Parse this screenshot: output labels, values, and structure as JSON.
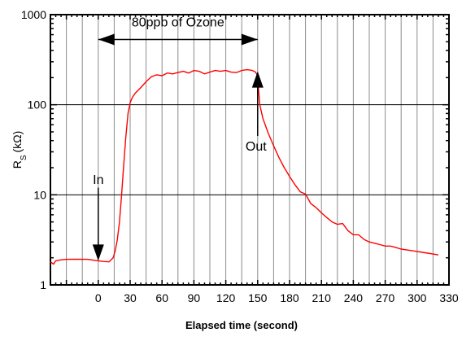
{
  "chart_data": {
    "type": "line",
    "xlabel": "Elapsed time (second)",
    "ylabel": "R",
    "ylabel_sub": "S",
    "ylabel_unit": "(kΩ)",
    "yscale": "log",
    "xlim": [
      -45,
      330
    ],
    "ylim": [
      1,
      1000
    ],
    "x_ticks": [
      0,
      30,
      60,
      90,
      120,
      150,
      180,
      210,
      240,
      270,
      300,
      330
    ],
    "y_ticks": [
      1,
      10,
      100,
      1000
    ],
    "grid": "vertical",
    "series": [
      {
        "color": "#ff0000",
        "points": [
          [
            -45,
            1.8
          ],
          [
            -42,
            1.7
          ],
          [
            -40,
            1.85
          ],
          [
            -35,
            1.9
          ],
          [
            -30,
            1.92
          ],
          [
            -20,
            1.93
          ],
          [
            -10,
            1.92
          ],
          [
            0,
            1.85
          ],
          [
            5,
            1.82
          ],
          [
            10,
            1.8
          ],
          [
            14,
            2.0
          ],
          [
            16,
            2.4
          ],
          [
            18,
            3.2
          ],
          [
            20,
            5
          ],
          [
            22,
            10
          ],
          [
            24,
            22
          ],
          [
            26,
            45
          ],
          [
            28,
            80
          ],
          [
            30,
            105
          ],
          [
            32,
            120
          ],
          [
            35,
            135
          ],
          [
            40,
            155
          ],
          [
            45,
            180
          ],
          [
            50,
            205
          ],
          [
            55,
            215
          ],
          [
            60,
            210
          ],
          [
            65,
            225
          ],
          [
            70,
            220
          ],
          [
            75,
            228
          ],
          [
            80,
            235
          ],
          [
            85,
            225
          ],
          [
            90,
            240
          ],
          [
            95,
            235
          ],
          [
            100,
            220
          ],
          [
            105,
            230
          ],
          [
            110,
            240
          ],
          [
            115,
            235
          ],
          [
            120,
            240
          ],
          [
            125,
            230
          ],
          [
            130,
            228
          ],
          [
            135,
            240
          ],
          [
            140,
            245
          ],
          [
            145,
            240
          ],
          [
            148,
            230
          ],
          [
            150,
            210
          ],
          [
            151,
            140
          ],
          [
            152,
            100
          ],
          [
            155,
            70
          ],
          [
            160,
            48
          ],
          [
            165,
            35
          ],
          [
            170,
            26
          ],
          [
            175,
            20
          ],
          [
            180,
            16
          ],
          [
            185,
            13
          ],
          [
            190,
            10.8
          ],
          [
            195,
            10.2
          ],
          [
            200,
            8.0
          ],
          [
            205,
            7.2
          ],
          [
            210,
            6.3
          ],
          [
            215,
            5.6
          ],
          [
            220,
            5.0
          ],
          [
            225,
            4.7
          ],
          [
            230,
            4.8
          ],
          [
            235,
            4.0
          ],
          [
            240,
            3.6
          ],
          [
            245,
            3.6
          ],
          [
            250,
            3.2
          ],
          [
            255,
            3.0
          ],
          [
            260,
            2.9
          ],
          [
            265,
            2.8
          ],
          [
            270,
            2.7
          ],
          [
            275,
            2.7
          ],
          [
            280,
            2.6
          ],
          [
            285,
            2.5
          ],
          [
            290,
            2.45
          ],
          [
            295,
            2.4
          ],
          [
            300,
            2.35
          ],
          [
            305,
            2.3
          ],
          [
            310,
            2.25
          ],
          [
            315,
            2.2
          ],
          [
            320,
            2.15
          ]
        ]
      }
    ],
    "annotations": {
      "ozone": {
        "text": "80ppb of Ozone",
        "x_start": 0,
        "x_end": 150,
        "y": 530
      },
      "in": {
        "text": "In",
        "x": 0,
        "text_y": 15,
        "arrow_from": 12,
        "arrow_to": 1.85
      },
      "out": {
        "text": "Out",
        "x": 150,
        "text_y": 35,
        "arrow_from": 45,
        "arrow_to": 235
      }
    }
  }
}
